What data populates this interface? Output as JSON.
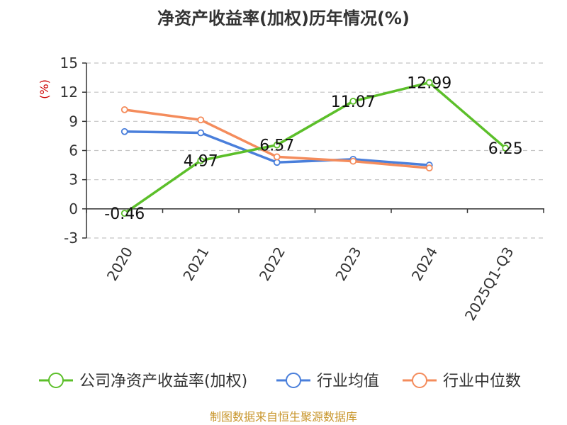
{
  "chart_data": {
    "type": "line",
    "title": "净资产收益率(加权)历年情况(%)",
    "ylabel": "(%)",
    "categories": [
      "2020",
      "2021",
      "2022",
      "2023",
      "2024",
      "2025Q1-Q3"
    ],
    "ylim": [
      -3,
      15
    ],
    "yticks": [
      "15",
      "12",
      "9",
      "6",
      "3",
      "0",
      "-3"
    ],
    "ytick_values": [
      15,
      12,
      9,
      6,
      3,
      0,
      -3
    ],
    "grid": true,
    "legend_position": "bottom",
    "series": [
      {
        "name": "公司净资产收益率(加权)",
        "color": "#5cbf2a",
        "values": [
          -0.46,
          4.97,
          6.57,
          11.07,
          12.99,
          6.25
        ],
        "labels": [
          "-0.46",
          "4.97",
          "6.57",
          "11.07",
          "12.99",
          "6.25"
        ]
      },
      {
        "name": "行业均值",
        "color": "#4a7fdb",
        "values": [
          7.95,
          7.82,
          4.78,
          5.1,
          4.5,
          null
        ]
      },
      {
        "name": "行业中位数",
        "color": "#f48c5c",
        "values": [
          10.2,
          9.15,
          5.35,
          4.9,
          4.2,
          null
        ]
      }
    ]
  },
  "source": "制图数据来自恒生聚源数据库"
}
